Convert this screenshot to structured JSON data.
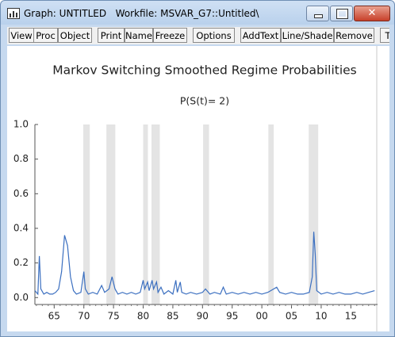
{
  "window": {
    "title": "Graph: UNTITLED   Workfile: MSVAR_G7::Untitled\\"
  },
  "toolbar": [
    "View",
    "Proc",
    "Object",
    "Print",
    "Name",
    "Freeze",
    "Options",
    "AddText",
    "Line/Shade",
    "Remove",
    "T"
  ],
  "chart_data": {
    "type": "line",
    "title": "Markov Switching Smoothed Regime Probabilities",
    "subtitle": "P(S(t)= 2)",
    "x": [
      1961.75,
      1962.0,
      1962.25,
      1962.5,
      1962.75,
      1963.25,
      1963.75,
      1964.25,
      1964.75,
      1965.25,
      1965.75,
      1966.25,
      1966.75,
      1967.25,
      1967.75,
      1968.25,
      1968.75,
      1969.5,
      1970.0,
      1970.25,
      1970.75,
      1971.5,
      1972.25,
      1973.0,
      1973.5,
      1974.25,
      1974.75,
      1975.25,
      1975.75,
      1976.5,
      1977.25,
      1978.0,
      1978.75,
      1979.5,
      1980.0,
      1980.25,
      1980.75,
      1981.0,
      1981.5,
      1981.75,
      1982.25,
      1982.5,
      1983.0,
      1983.5,
      1984.25,
      1985.0,
      1985.5,
      1985.75,
      1986.25,
      1986.5,
      1987.25,
      1988.0,
      1989.0,
      1990.0,
      1990.5,
      1991.25,
      1992.0,
      1993.0,
      1993.5,
      1994.0,
      1995.0,
      1996.0,
      1997.0,
      1998.0,
      1999.0,
      2000.0,
      2001.0,
      2002.5,
      2003.0,
      2004.0,
      2005.0,
      2006.0,
      2007.0,
      2008.0,
      2008.5,
      2008.75,
      2009.0,
      2009.25,
      2010.0,
      2011.0,
      2012.0,
      2013.0,
      2014.0,
      2015.0,
      2016.0,
      2017.0,
      2018.0,
      2019.0
    ],
    "series": [
      {
        "color": "#3b6fc0",
        "values": [
          0.04,
          0.03,
          0.02,
          0.24,
          0.05,
          0.02,
          0.03,
          0.02,
          0.02,
          0.03,
          0.05,
          0.15,
          0.36,
          0.3,
          0.12,
          0.04,
          0.02,
          0.03,
          0.15,
          0.05,
          0.02,
          0.03,
          0.02,
          0.07,
          0.03,
          0.05,
          0.12,
          0.05,
          0.02,
          0.03,
          0.02,
          0.03,
          0.02,
          0.03,
          0.1,
          0.05,
          0.09,
          0.04,
          0.1,
          0.05,
          0.09,
          0.03,
          0.06,
          0.02,
          0.04,
          0.02,
          0.1,
          0.03,
          0.09,
          0.03,
          0.02,
          0.03,
          0.02,
          0.03,
          0.05,
          0.02,
          0.03,
          0.02,
          0.06,
          0.02,
          0.03,
          0.02,
          0.03,
          0.02,
          0.03,
          0.02,
          0.03,
          0.06,
          0.03,
          0.02,
          0.03,
          0.02,
          0.02,
          0.03,
          0.12,
          0.38,
          0.25,
          0.04,
          0.02,
          0.03,
          0.02,
          0.03,
          0.02,
          0.02,
          0.03,
          0.02,
          0.03,
          0.04
        ]
      }
    ],
    "shades": [
      [
        1969.9,
        1971.0
      ],
      [
        1973.8,
        1975.3
      ],
      [
        1980.0,
        1980.8
      ],
      [
        1981.4,
        1982.8
      ],
      [
        1990.1,
        1991.1
      ],
      [
        2001.1,
        2002.0
      ],
      [
        2007.9,
        2009.5
      ]
    ],
    "shade_color": "#e4e4e4",
    "xlim": [
      1961.75,
      2019.5
    ],
    "xticks": [
      {
        "value": 1965,
        "label": "65"
      },
      {
        "value": 1970,
        "label": "70"
      },
      {
        "value": 1975,
        "label": "75"
      },
      {
        "value": 1980,
        "label": "80"
      },
      {
        "value": 1985,
        "label": "85"
      },
      {
        "value": 1990,
        "label": "90"
      },
      {
        "value": 1995,
        "label": "95"
      },
      {
        "value": 2000,
        "label": "00"
      },
      {
        "value": 2005,
        "label": "05"
      },
      {
        "value": 2010,
        "label": "10"
      },
      {
        "value": 2015,
        "label": "15"
      }
    ],
    "ylim": [
      -0.04,
      1.0
    ],
    "yticks": [
      {
        "value": 0,
        "label": "0.0"
      },
      0.2,
      0.4,
      0.6,
      0.8,
      {
        "value": 1,
        "label": "1.0"
      }
    ],
    "grid": false
  }
}
